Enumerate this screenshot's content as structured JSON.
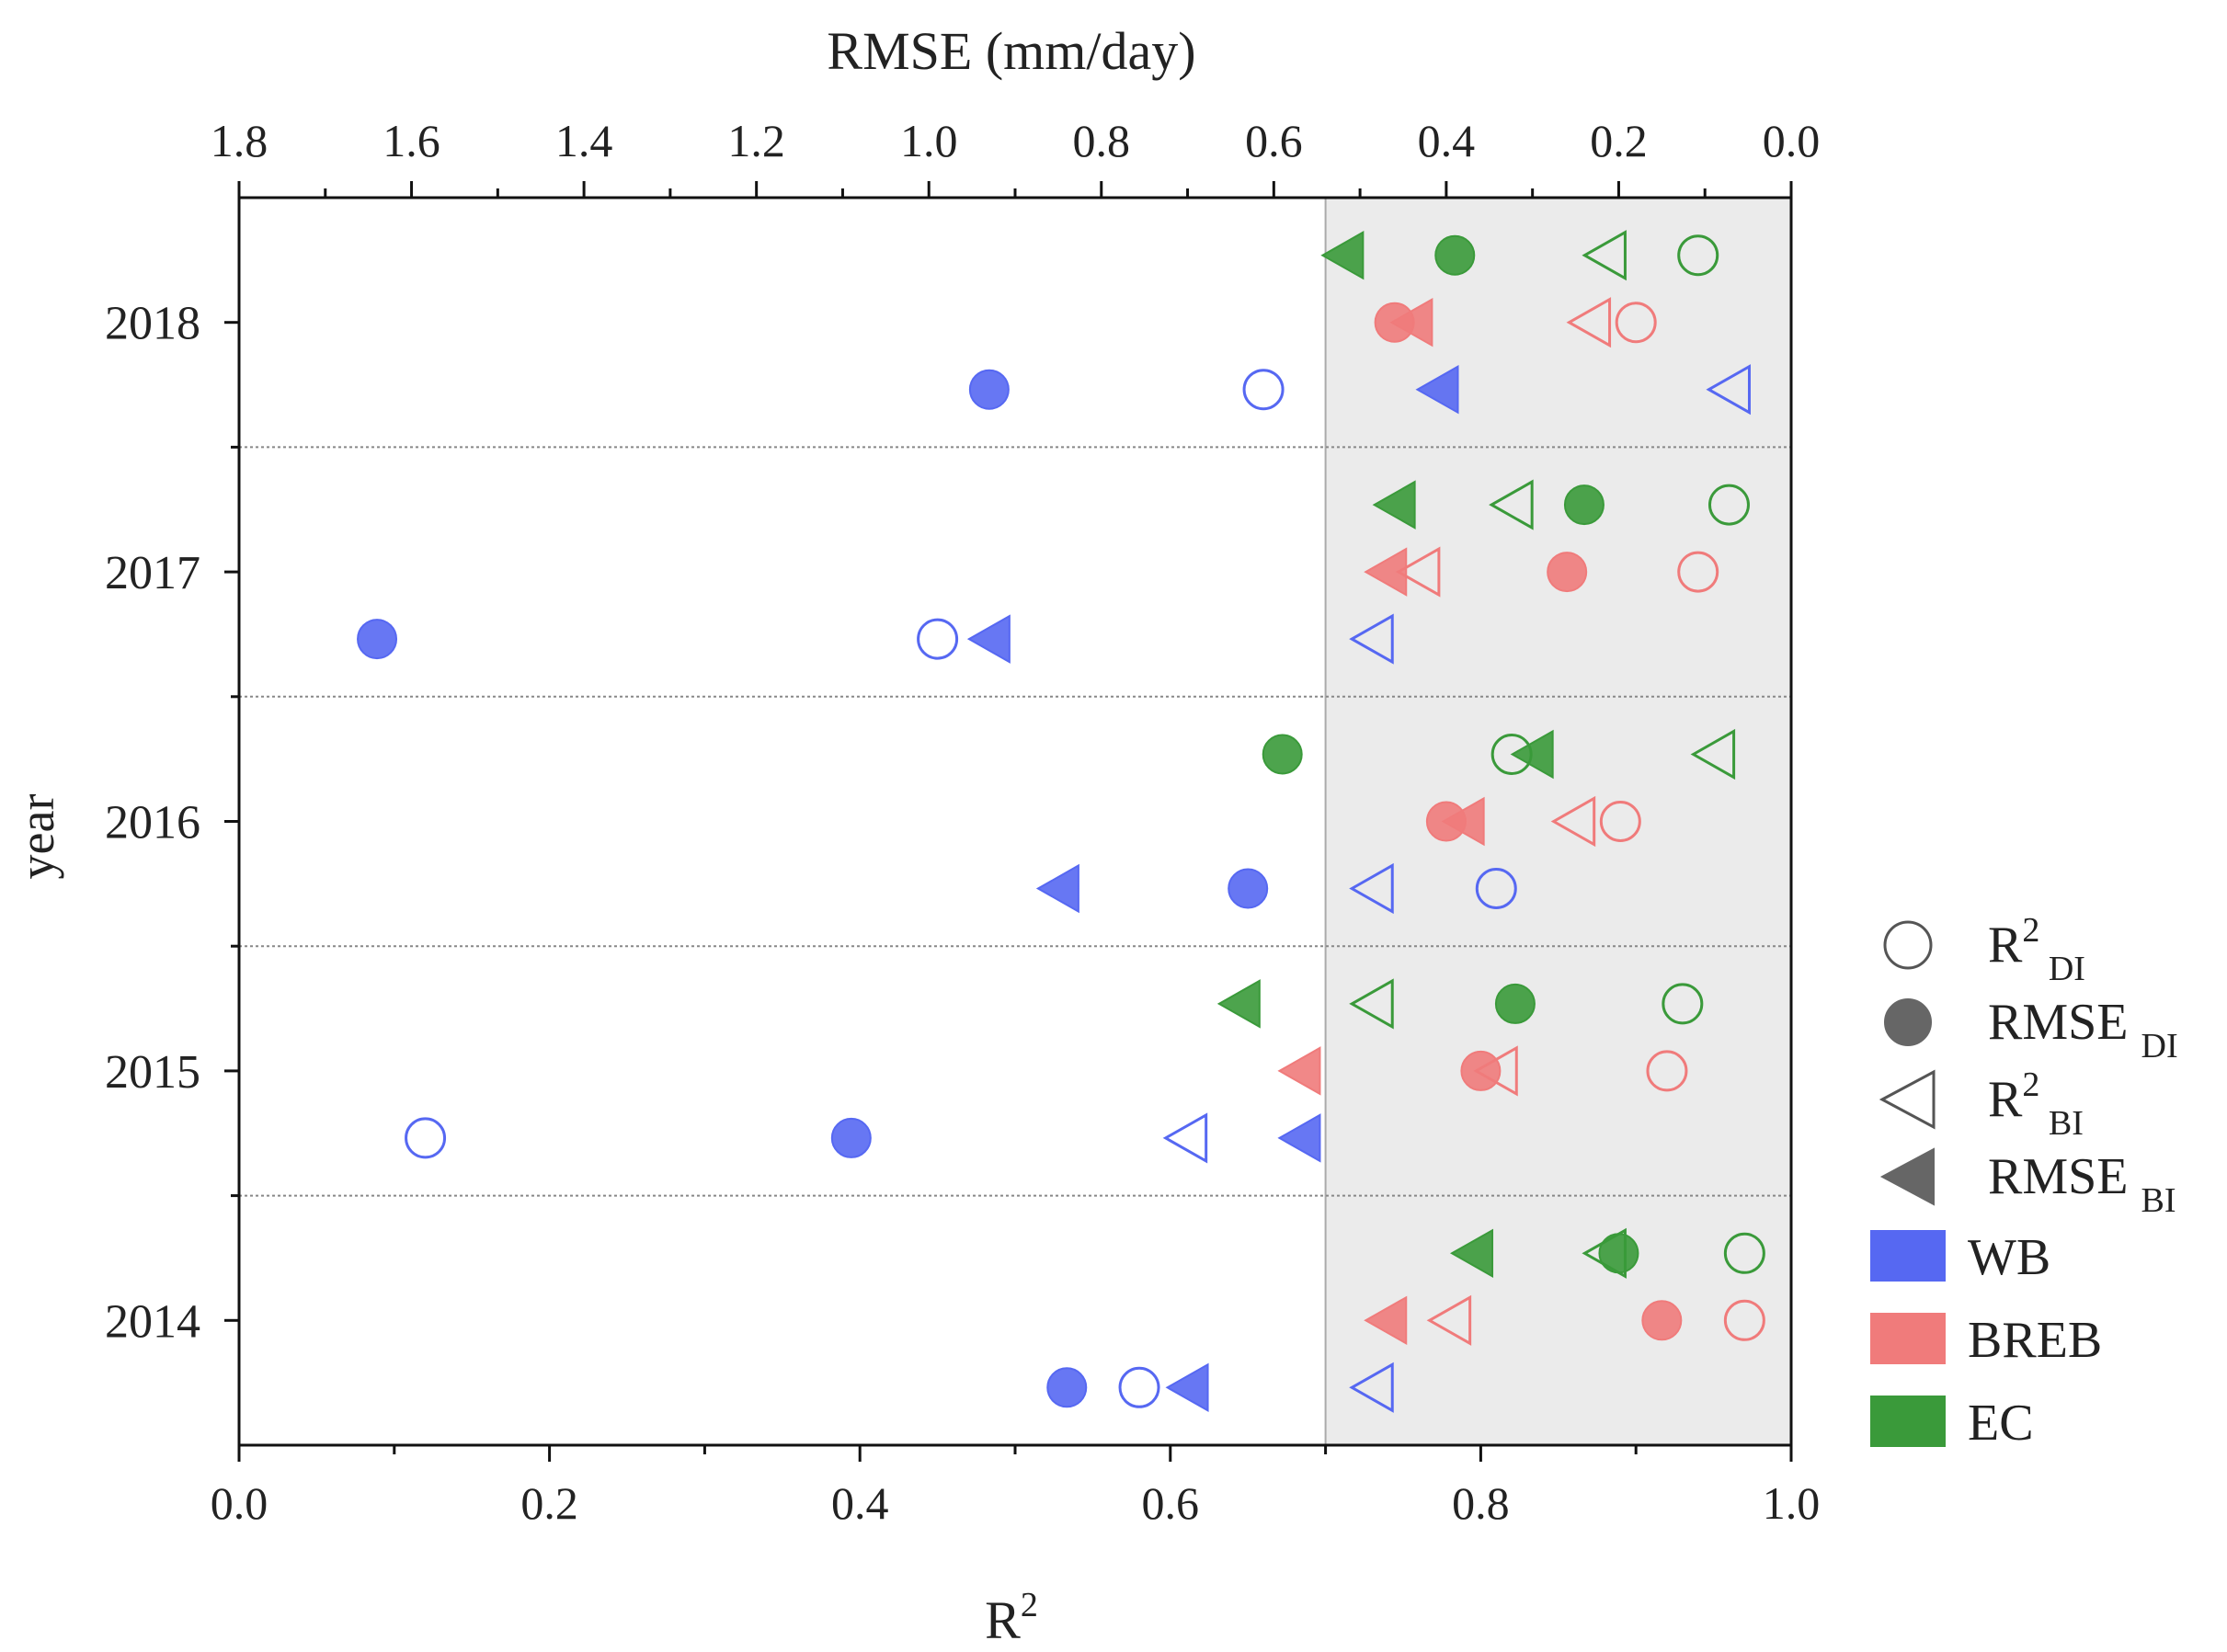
{
  "chart_data": {
    "type": "scatter",
    "xlabel_bottom": "R",
    "xlabel_bottom_sup": "2",
    "xlabel_top": "RMSE (mm/day)",
    "ylabel": "year",
    "x_range": [
      0.0,
      1.0
    ],
    "x_ticks": [
      "0.0",
      "0.2",
      "0.4",
      "0.6",
      "0.8",
      "1.0"
    ],
    "top_range": [
      1.8,
      0.0
    ],
    "top_ticks": [
      "1.8",
      "1.6",
      "1.4",
      "1.2",
      "1.0",
      "0.8",
      "0.6",
      "0.4",
      "0.2",
      "0.0"
    ],
    "shaded_from": 0.7,
    "years": [
      "2014",
      "2015",
      "2016",
      "2017",
      "2018"
    ],
    "methods": [
      {
        "name": "WB",
        "color": "#5668f2"
      },
      {
        "name": "BREB",
        "color": "#f07b7b"
      },
      {
        "name": "EC",
        "color": "#3a9a3a"
      }
    ],
    "metric_legend": [
      {
        "key": "R2_DI",
        "marker": "circle-open",
        "base": "R",
        "sup": "2",
        "sub": "DI"
      },
      {
        "key": "RMSE_DI",
        "marker": "circle-filled",
        "base": "RMSE ",
        "sup": "",
        "sub": "DI"
      },
      {
        "key": "R2_BI",
        "marker": "triangle-open",
        "base": "R",
        "sup": "2",
        "sub": "BI"
      },
      {
        "key": "RMSE_BI",
        "marker": "triangle-filled",
        "base": "RMSE ",
        "sup": "",
        "sub": "BI"
      }
    ],
    "points": [
      {
        "year": "2018",
        "method": "EC",
        "R2_DI": 0.94,
        "R2_BI": 0.88,
        "RMSE_DI": 0.39,
        "RMSE_BI": 0.52
      },
      {
        "year": "2018",
        "method": "BREB",
        "R2_DI": 0.9,
        "R2_BI": 0.87,
        "RMSE_DI": 0.46,
        "RMSE_BI": 0.44
      },
      {
        "year": "2018",
        "method": "WB",
        "R2_DI": 0.66,
        "R2_BI": 0.96,
        "RMSE_DI": 0.93,
        "RMSE_BI": 0.41
      },
      {
        "year": "2017",
        "method": "EC",
        "R2_DI": 0.96,
        "R2_BI": 0.82,
        "RMSE_DI": 0.24,
        "RMSE_BI": 0.46
      },
      {
        "year": "2017",
        "method": "BREB",
        "R2_DI": 0.94,
        "R2_BI": 0.76,
        "RMSE_DI": 0.26,
        "RMSE_BI": 0.47
      },
      {
        "year": "2017",
        "method": "WB",
        "R2_DI": 0.45,
        "R2_BI": 0.73,
        "RMSE_DI": 1.64,
        "RMSE_BI": 0.93
      },
      {
        "year": "2016",
        "method": "EC",
        "R2_DI": 0.82,
        "R2_BI": 0.95,
        "RMSE_DI": 0.59,
        "RMSE_BI": 0.3
      },
      {
        "year": "2016",
        "method": "BREB",
        "R2_DI": 0.89,
        "R2_BI": 0.86,
        "RMSE_DI": 0.4,
        "RMSE_BI": 0.38
      },
      {
        "year": "2016",
        "method": "WB",
        "R2_DI": 0.81,
        "R2_BI": 0.73,
        "RMSE_DI": 0.63,
        "RMSE_BI": 0.85
      },
      {
        "year": "2015",
        "method": "EC",
        "R2_DI": 0.93,
        "R2_BI": 0.73,
        "RMSE_DI": 0.32,
        "RMSE_BI": 0.64
      },
      {
        "year": "2015",
        "method": "BREB",
        "R2_DI": 0.92,
        "R2_BI": 0.81,
        "RMSE_DI": 0.36,
        "RMSE_BI": 0.57
      },
      {
        "year": "2015",
        "method": "WB",
        "R2_DI": 0.12,
        "R2_BI": 0.61,
        "RMSE_DI": 1.09,
        "RMSE_BI": 0.57
      },
      {
        "year": "2014",
        "method": "EC",
        "R2_DI": 0.97,
        "R2_BI": 0.88,
        "RMSE_DI": 0.2,
        "RMSE_BI": 0.37
      },
      {
        "year": "2014",
        "method": "BREB",
        "R2_DI": 0.97,
        "R2_BI": 0.78,
        "RMSE_DI": 0.15,
        "RMSE_BI": 0.47
      },
      {
        "year": "2014",
        "method": "WB",
        "R2_DI": 0.58,
        "R2_BI": 0.73,
        "RMSE_DI": 0.84,
        "RMSE_BI": 0.7
      }
    ]
  }
}
